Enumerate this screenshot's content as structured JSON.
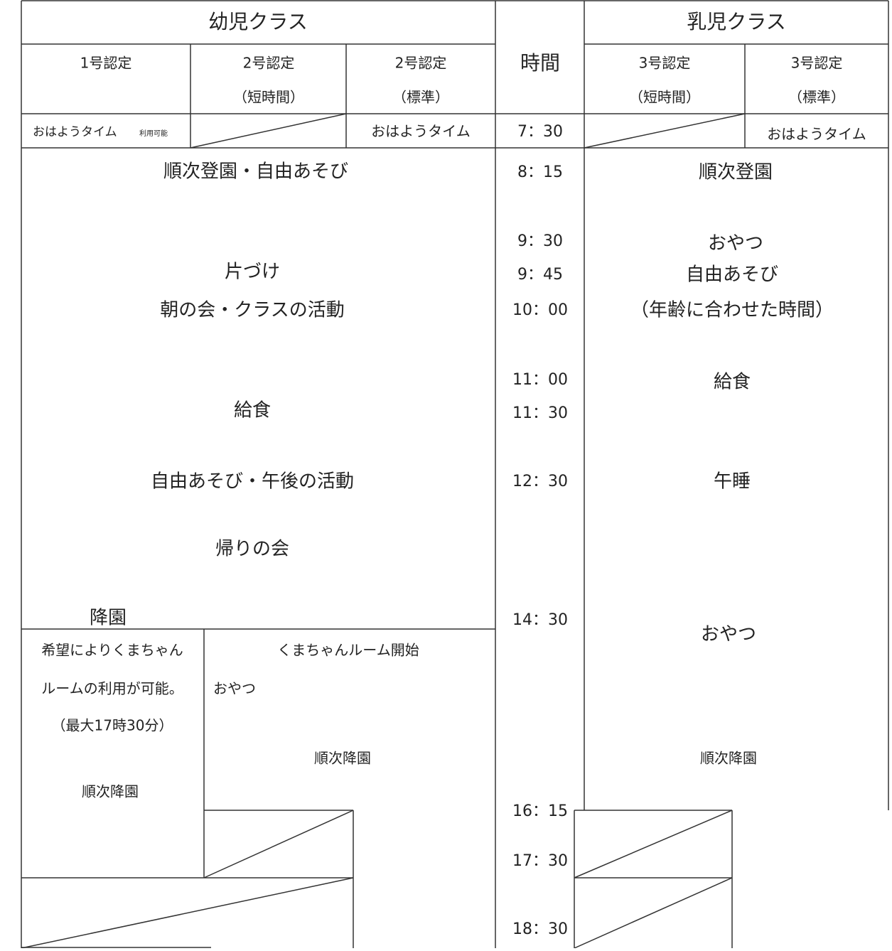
{
  "header": {
    "left_group": "幼児クラス",
    "time": "時間",
    "right_group": "乳児クラス"
  },
  "columns": [
    {
      "label": "1号認定"
    },
    {
      "label": "2号認定",
      "sub": "（短時間）"
    },
    {
      "label": "2号認定",
      "sub": "（標準）"
    },
    {
      "label": "3号認定",
      "sub": "（短時間）"
    },
    {
      "label": "3号認定",
      "sub": "（標準）"
    }
  ],
  "morning": {
    "col1": "おはようタイム",
    "col1_note": "利用可能",
    "col3": "おはようタイム",
    "time": "7：30",
    "col5": "おはようタイム"
  },
  "times": [
    "8：15",
    "9：30",
    "9：45",
    "10：00",
    "11：00",
    "11：30",
    "12：30",
    "14：30",
    "16：15",
    "17：30",
    "18：30"
  ],
  "toddler_schedule": [
    "順次登園・自由あそび",
    "片づけ",
    "朝の会・クラスの活動",
    "給食",
    "自由あそび・午後の活動",
    "帰りの会",
    "降園"
  ],
  "extended_left": [
    "希望によりくまちゃん",
    "ルームの利用が可能。",
    "（最大17時30分）",
    "順次降園"
  ],
  "extended_right": [
    "くまちゃんルーム開始",
    "おやつ",
    "順次降園"
  ],
  "infant_schedule": [
    "順次登園",
    "おやつ",
    "自由あそび",
    "（年齢に合わせた時間）",
    "給食",
    "午睡",
    "おやつ",
    "順次降園"
  ]
}
